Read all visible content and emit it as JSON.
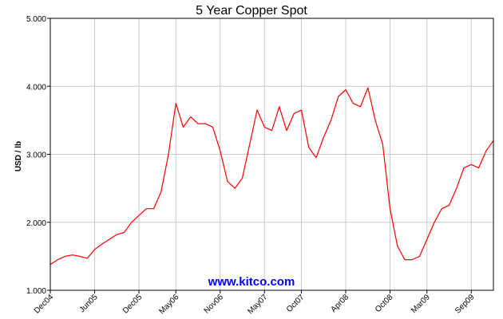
{
  "chart_data": {
    "type": "line",
    "title": "5 Year Copper Spot",
    "xlabel": "",
    "ylabel": "USD / lb",
    "ylim": [
      1.0,
      5.0
    ],
    "xlim": [
      "Dec04",
      "Dec09"
    ],
    "y_ticks": [
      "1.000",
      "2.000",
      "3.000",
      "4.000",
      "5.000"
    ],
    "x_ticks": [
      "Dec04",
      "Jun05",
      "Dec05",
      "May06",
      "Nov06",
      "May07",
      "Oct07",
      "Apr08",
      "Oct08",
      "Mar09",
      "Sep09"
    ],
    "grid": true,
    "line_color": "#ff0000",
    "series": [
      {
        "x": [
          "Dec04",
          "Jan05",
          "Feb05",
          "Mar05",
          "Apr05",
          "May05",
          "Jun05",
          "Jul05",
          "Aug05",
          "Sep05",
          "Oct05",
          "Nov05",
          "Dec05",
          "Jan06",
          "Feb06",
          "Mar06",
          "Apr06",
          "May06",
          "Jun06",
          "Jul06",
          "Aug06",
          "Sep06",
          "Oct06",
          "Nov06",
          "Dec06",
          "Jan07",
          "Feb07",
          "Mar07",
          "Apr07",
          "May07",
          "Jun07",
          "Jul07",
          "Aug07",
          "Sep07",
          "Oct07",
          "Nov07",
          "Dec07",
          "Jan08",
          "Feb08",
          "Mar08",
          "Apr08",
          "May08",
          "Jun08",
          "Jul08",
          "Aug08",
          "Sep08",
          "Oct08",
          "Nov08",
          "Dec08",
          "Jan09",
          "Feb09",
          "Mar09",
          "Apr09",
          "May09",
          "Jun09",
          "Jul09",
          "Aug09",
          "Sep09",
          "Oct09",
          "Nov09",
          "Dec09"
        ],
        "values": [
          1.38,
          1.45,
          1.5,
          1.52,
          1.5,
          1.47,
          1.6,
          1.68,
          1.75,
          1.82,
          1.85,
          2.0,
          2.1,
          2.2,
          2.2,
          2.45,
          3.0,
          3.75,
          3.4,
          3.55,
          3.45,
          3.45,
          3.4,
          3.05,
          2.6,
          2.5,
          2.65,
          3.15,
          3.65,
          3.4,
          3.35,
          3.7,
          3.35,
          3.6,
          3.65,
          3.1,
          2.95,
          3.25,
          3.5,
          3.85,
          3.95,
          3.75,
          3.7,
          3.98,
          3.5,
          3.15,
          2.2,
          1.65,
          1.45,
          1.45,
          1.5,
          1.75,
          2.0,
          2.2,
          2.25,
          2.5,
          2.8,
          2.85,
          2.8,
          3.05,
          3.2
        ]
      }
    ]
  },
  "watermark": {
    "text": "www.kitco.com",
    "color": "#0000ff"
  }
}
